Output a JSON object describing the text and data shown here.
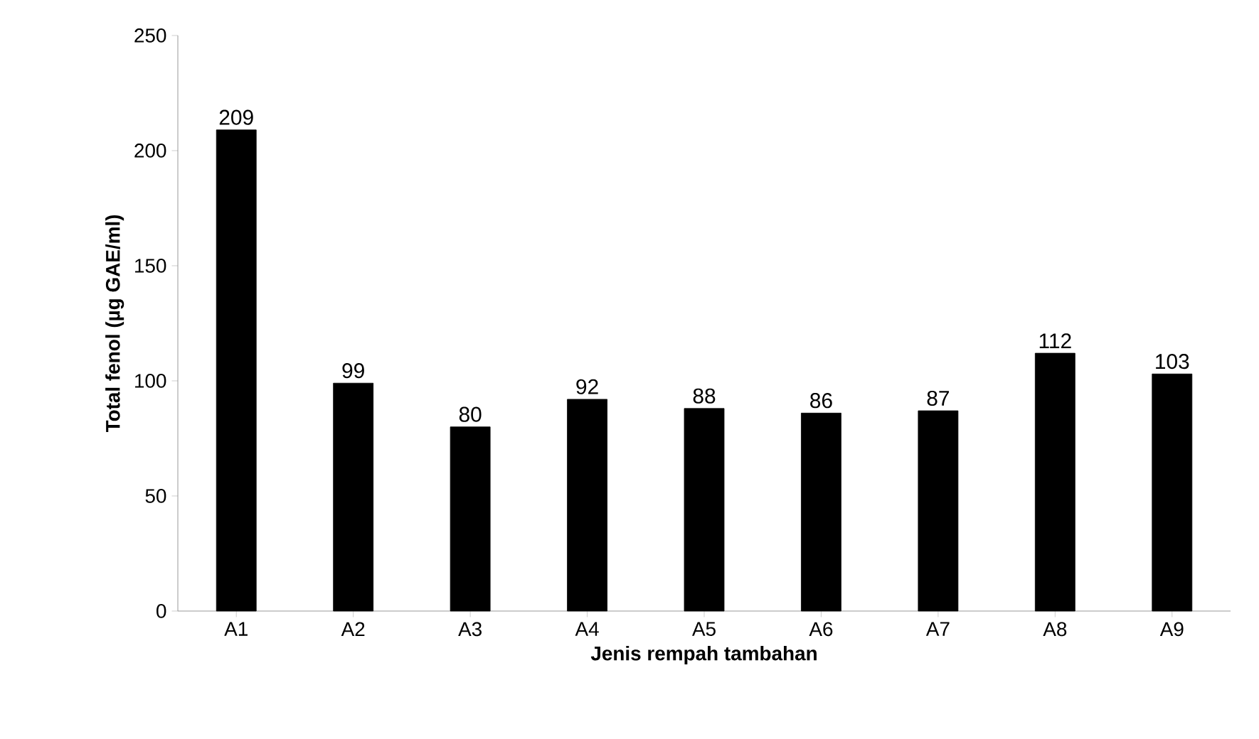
{
  "chart_data": {
    "type": "bar",
    "xlabel": "Jenis rempah tambahan",
    "ylabel": "Total fenol (µg GAE/ml)",
    "categories": [
      "A1",
      "A2",
      "A3",
      "A4",
      "A5",
      "A6",
      "A7",
      "A8",
      "A9"
    ],
    "values": [
      209,
      99,
      80,
      92,
      88,
      86,
      87,
      112,
      103
    ],
    "color": "#000000",
    "ylim": [
      0,
      250
    ],
    "yticks": [
      0,
      50,
      100,
      150,
      200,
      250
    ],
    "data_labels": true
  }
}
